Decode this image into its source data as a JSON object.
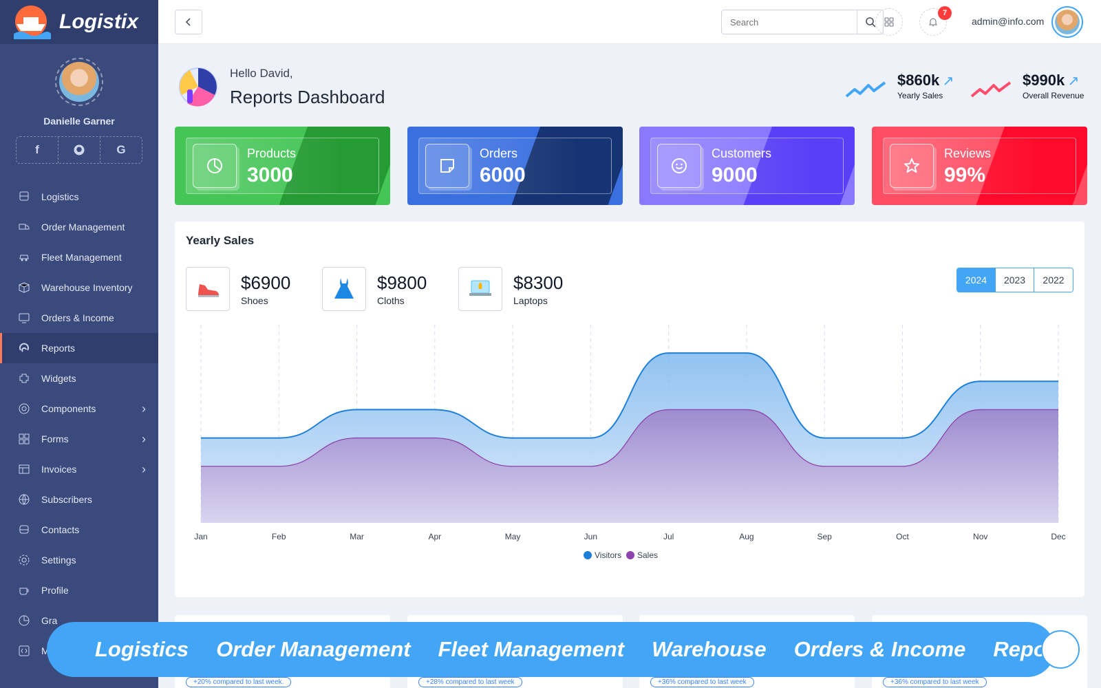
{
  "brand": {
    "name": "Logistix"
  },
  "user": {
    "name": "Danielle Garner",
    "email": "admin@info.com"
  },
  "social": [
    "f",
    "github",
    "G"
  ],
  "nav": [
    {
      "label": "Logistics",
      "icon": "bus-icon",
      "active": false,
      "chevron": false
    },
    {
      "label": "Order Management",
      "icon": "truck-icon",
      "active": false,
      "chevron": false
    },
    {
      "label": "Fleet Management",
      "icon": "car-icon",
      "active": false,
      "chevron": false
    },
    {
      "label": "Warehouse Inventory",
      "icon": "box-icon",
      "active": false,
      "chevron": false
    },
    {
      "label": "Orders & Income",
      "icon": "monitor-icon",
      "active": false,
      "chevron": false
    },
    {
      "label": "Reports",
      "icon": "fingerprint-icon",
      "active": true,
      "chevron": false
    },
    {
      "label": "Widgets",
      "icon": "puzzle-icon",
      "active": false,
      "chevron": false
    },
    {
      "label": "Components",
      "icon": "aperture-icon",
      "active": false,
      "chevron": true
    },
    {
      "label": "Forms",
      "icon": "grid-icon",
      "active": false,
      "chevron": true
    },
    {
      "label": "Invoices",
      "icon": "table-icon",
      "active": false,
      "chevron": true
    },
    {
      "label": "Subscribers",
      "icon": "globe-icon",
      "active": false,
      "chevron": false
    },
    {
      "label": "Contacts",
      "icon": "bus-front-icon",
      "active": false,
      "chevron": false
    },
    {
      "label": "Settings",
      "icon": "gear-icon",
      "active": false,
      "chevron": false
    },
    {
      "label": "Profile",
      "icon": "cup-icon",
      "active": false,
      "chevron": false
    },
    {
      "label": "Gra",
      "icon": "pie-icon",
      "active": false,
      "chevron": false
    },
    {
      "label": "M",
      "icon": "code-icon",
      "active": false,
      "chevron": false
    }
  ],
  "header": {
    "search_placeholder": "Search",
    "notifications": "7"
  },
  "greeting": {
    "hello": "Hello David,",
    "title": "Reports Dashboard"
  },
  "kpis": [
    {
      "value": "$860k",
      "label": "Yearly Sales",
      "color": "#42a5f5"
    },
    {
      "value": "$990k",
      "label": "Overall Revenue",
      "color": "#ff4d6d"
    }
  ],
  "stats": [
    {
      "label": "Products",
      "value": "3000",
      "icon": "pie-icon",
      "bg": "#44c556",
      "accent": "#259b33"
    },
    {
      "label": "Orders",
      "value": "6000",
      "icon": "note-icon",
      "bg": "#3a6fe0",
      "accent": "#163473"
    },
    {
      "label": "Customers",
      "value": "9000",
      "icon": "smile-icon",
      "bg": "#8a78ff",
      "accent": "#5b3ff7"
    },
    {
      "label": "Reviews",
      "value": "99%",
      "icon": "star-icon",
      "bg": "#ff4d63",
      "accent": "#ff0a2a"
    }
  ],
  "sales_card": {
    "title": "Yearly Sales",
    "products": [
      {
        "value": "$6900",
        "label": "Shoes",
        "icon": "shoe-icon"
      },
      {
        "value": "$9800",
        "label": "Cloths",
        "icon": "dress-icon"
      },
      {
        "value": "$8300",
        "label": "Laptops",
        "icon": "laptop-rocket-icon"
      }
    ],
    "years": [
      "2024",
      "2023",
      "2022"
    ],
    "selected_year": "2024"
  },
  "chart_data": {
    "type": "area",
    "categories": [
      "Jan",
      "Feb",
      "Mar",
      "Apr",
      "May",
      "Jun",
      "Jul",
      "Aug",
      "Sep",
      "Oct",
      "Nov",
      "Dec"
    ],
    "series": [
      {
        "name": "Visitors",
        "color": "#1e7fd8",
        "values": [
          3,
          3,
          4,
          4,
          3,
          3,
          6,
          6,
          3,
          3,
          5,
          5
        ]
      },
      {
        "name": "Sales",
        "color": "#8e44ad",
        "values": [
          2,
          2,
          3,
          3,
          2,
          2,
          4,
          4,
          2,
          2,
          4,
          4
        ]
      }
    ],
    "ylim": [
      0,
      7
    ],
    "grid": true,
    "legend": "bottom"
  },
  "bottom_cards": [
    {
      "note": "+20% compared to last week."
    },
    {
      "note": "+28% compared to last week"
    },
    {
      "note": "+36% compared to last week"
    },
    {
      "note": "+36% compared to last week"
    }
  ],
  "banner": [
    "Logistics",
    "Order Management",
    "Fleet Management",
    "Warehouse",
    "Orders & Income",
    "Reports"
  ]
}
